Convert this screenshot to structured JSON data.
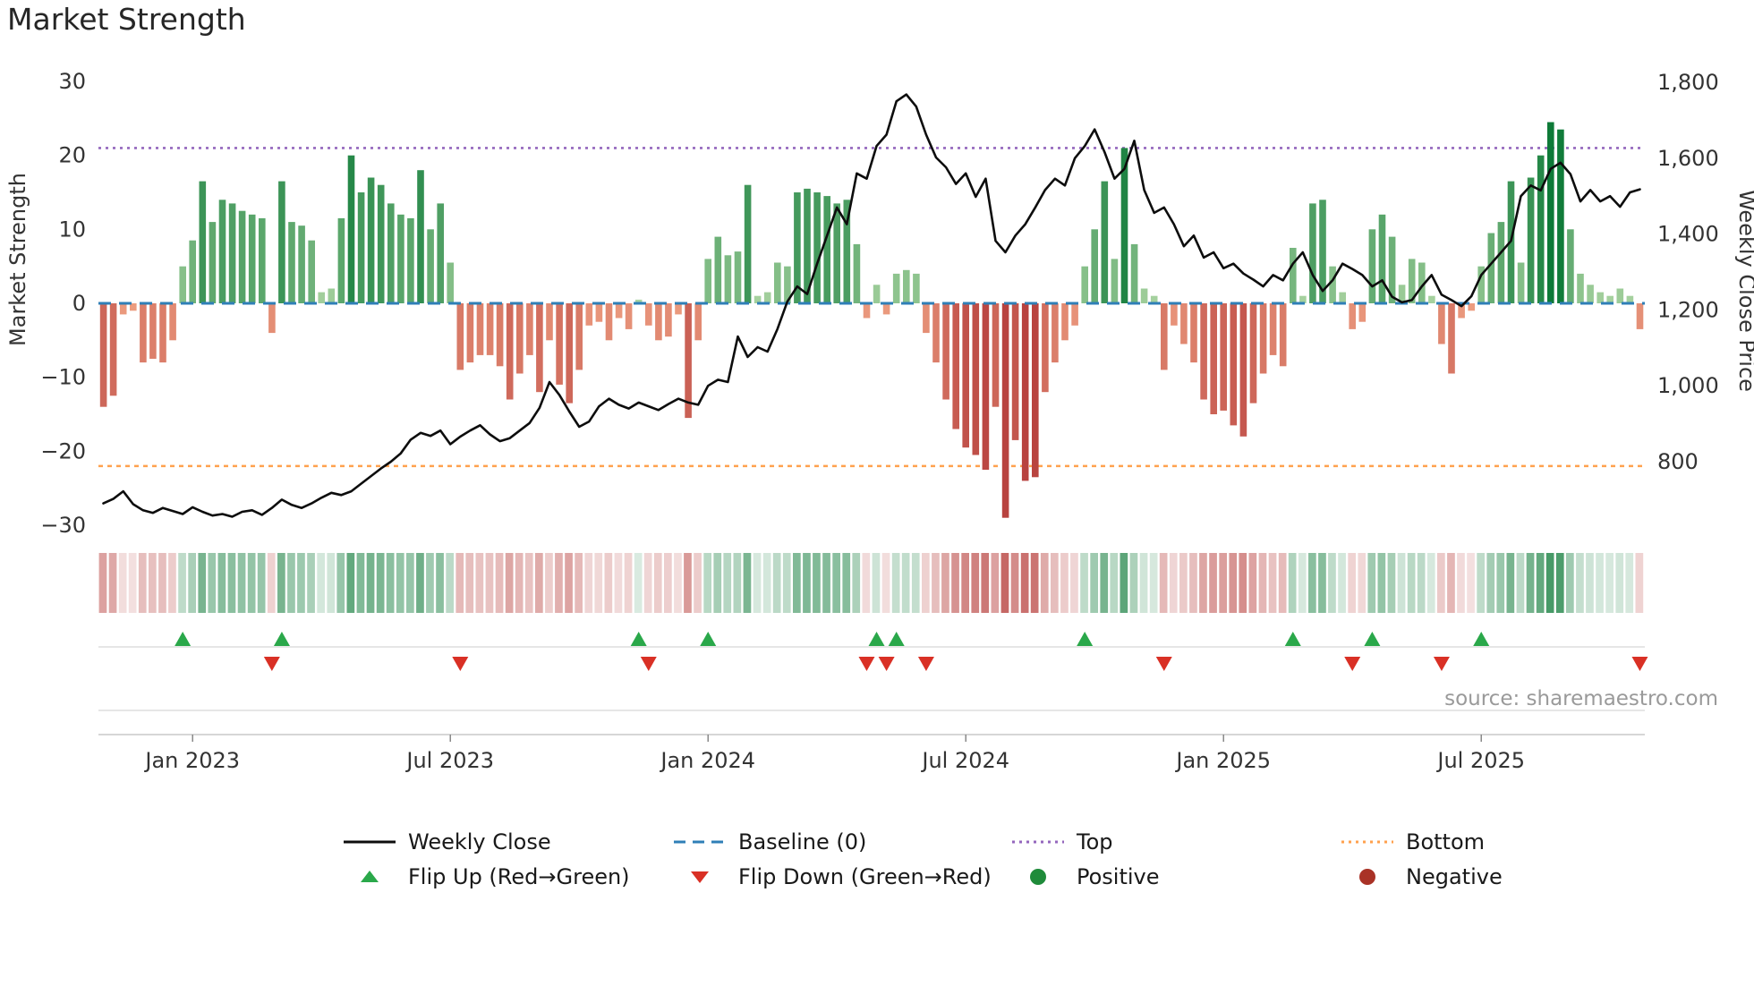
{
  "page": {
    "title": "Market Strength",
    "source": "source: sharemaestro.com"
  },
  "chart_data": {
    "type": "bar+line",
    "description": "Weekly market strength bars with weekly close price line, intensity heatmap strip and flip markers",
    "title": "Market Strength",
    "left_axis": {
      "label": "Market Strength",
      "tick_values": [
        30,
        20,
        10,
        0,
        -10,
        -20,
        -30
      ],
      "tick_labels": [
        "30",
        "20",
        "10",
        "0",
        "−10",
        "−20",
        "−30"
      ],
      "range": [
        -30,
        30
      ]
    },
    "right_axis": {
      "label": "Weekly Close Price",
      "tick_values": [
        1800,
        1600,
        1400,
        1200,
        1000,
        800
      ],
      "tick_labels": [
        "1,800",
        "1,600",
        "1,400",
        "1,200",
        "1,000",
        "800"
      ]
    },
    "x_ticks": [
      {
        "i": 9,
        "label": "Jan 2023"
      },
      {
        "i": 35,
        "label": "Jul 2023"
      },
      {
        "i": 61,
        "label": "Jan 2024"
      },
      {
        "i": 87,
        "label": "Jul 2024"
      },
      {
        "i": 113,
        "label": "Jan 2025"
      },
      {
        "i": 139,
        "label": "Jul 2025"
      }
    ],
    "baseline_value": 0,
    "top_value": 21,
    "bottom_value": -22,
    "strength": [
      -14,
      -12.5,
      -1.5,
      -1,
      -8,
      -7.5,
      -8,
      -5,
      5,
      8.5,
      16.5,
      11,
      14,
      13.5,
      12.5,
      12,
      11.5,
      -4,
      16.5,
      11,
      10.5,
      8.5,
      1.5,
      2,
      11.5,
      20,
      15,
      17,
      16,
      13.5,
      12,
      11.5,
      18,
      10,
      13.5,
      5.5,
      -9,
      -8,
      -7,
      -7,
      -8.5,
      -13,
      -9.5,
      -7,
      -12,
      -5,
      -11,
      -13.5,
      -9,
      -3,
      -2.5,
      -5,
      -2,
      -3.5,
      0.5,
      -3,
      -5,
      -4.5,
      -1.5,
      -15.5,
      -5,
      6,
      9,
      6.5,
      7,
      16,
      1,
      1.5,
      5.5,
      5,
      15,
      15.5,
      15,
      14.5,
      13.5,
      14,
      8,
      -2,
      2.5,
      -1.5,
      4,
      4.5,
      4,
      -4,
      -8,
      -13,
      -17,
      -19.5,
      -20.5,
      -22.5,
      -14,
      -29,
      -18.5,
      -24,
      -23.5,
      -12,
      -8,
      -5,
      -3,
      5,
      10,
      16.5,
      6,
      21,
      8,
      2,
      1,
      -9,
      -3,
      -5.5,
      -8,
      -13,
      -15,
      -14.5,
      -16.5,
      -18,
      -13.5,
      -9.5,
      -7,
      -8.5,
      7.5,
      1,
      13.5,
      14,
      5,
      1.5,
      -3.5,
      -2.5,
      10,
      12,
      9,
      2.5,
      6,
      5.5,
      1,
      -5.5,
      -9.5,
      -2,
      -1,
      5,
      9.5,
      11,
      16.5,
      5.5,
      17,
      20,
      24.5,
      23.5,
      10,
      4,
      2.5,
      1.5,
      1,
      2,
      1,
      -3.5
    ],
    "price": [
      690,
      702,
      722,
      688,
      672,
      665,
      678,
      670,
      662,
      680,
      668,
      658,
      662,
      655,
      668,
      672,
      660,
      678,
      700,
      686,
      678,
      690,
      705,
      718,
      712,
      722,
      742,
      762,
      782,
      800,
      822,
      858,
      876,
      868,
      882,
      846,
      866,
      882,
      896,
      872,
      854,
      862,
      882,
      902,
      942,
      1010,
      976,
      932,
      892,
      906,
      946,
      966,
      950,
      940,
      956,
      946,
      936,
      952,
      966,
      956,
      950,
      1000,
      1016,
      1010,
      1130,
      1076,
      1102,
      1090,
      1150,
      1222,
      1262,
      1242,
      1322,
      1396,
      1470,
      1426,
      1560,
      1546,
      1632,
      1662,
      1750,
      1768,
      1736,
      1662,
      1602,
      1576,
      1532,
      1560,
      1498,
      1546,
      1382,
      1352,
      1396,
      1426,
      1470,
      1516,
      1546,
      1528,
      1600,
      1632,
      1676,
      1616,
      1546,
      1572,
      1646,
      1516,
      1456,
      1470,
      1426,
      1368,
      1396,
      1338,
      1352,
      1310,
      1322,
      1296,
      1280,
      1262,
      1292,
      1278,
      1322,
      1352,
      1292,
      1250,
      1278,
      1322,
      1308,
      1292,
      1262,
      1278,
      1235,
      1220,
      1226,
      1262,
      1292,
      1240,
      1226,
      1210,
      1236,
      1292,
      1322,
      1352,
      1382,
      1500,
      1528,
      1515,
      1572,
      1588,
      1558,
      1486,
      1516,
      1486,
      1500,
      1472,
      1510,
      1518
    ],
    "flip_up_weeks": [
      8,
      18,
      54,
      61,
      78,
      80,
      99,
      120,
      128,
      139
    ],
    "flip_down_weeks": [
      17,
      36,
      55,
      77,
      79,
      83,
      107,
      126,
      135,
      155
    ],
    "colors": {
      "price_line": "#0d0d0d",
      "baseline": "#2f7fb7",
      "top": "#9467bd",
      "bottom": "#ffa14e",
      "flip_up": "#2aa84a",
      "flip_down": "#d93025",
      "positive_marker": "#1f8b3a",
      "negative_marker": "#a93226",
      "bar_pos_dark": "#0e7a38",
      "bar_pos_light": "#aed6a4",
      "bar_neg_dark": "#b8423f",
      "bar_neg_light": "#efa183",
      "axis_text": "#333333",
      "rule": "#d8d8d8",
      "axis_rule": "#c9c9c9"
    },
    "legend": {
      "row1": [
        {
          "key": "weekly-close",
          "label": "Weekly Close",
          "symbol": "line",
          "color": "#0d0d0d"
        },
        {
          "key": "baseline",
          "label": "Baseline (0)",
          "symbol": "dashed-line",
          "color": "#2f7fb7"
        },
        {
          "key": "top",
          "label": "Top",
          "symbol": "dotted-line",
          "color": "#9467bd"
        },
        {
          "key": "bottom",
          "label": "Bottom",
          "symbol": "dotted-line",
          "color": "#ffa14e"
        }
      ],
      "row2": [
        {
          "key": "flip-up",
          "label": "Flip Up (Red→Green)",
          "symbol": "triangle-up",
          "color": "#2aa84a"
        },
        {
          "key": "flip-down",
          "label": "Flip Down (Green→Red)",
          "symbol": "triangle-down",
          "color": "#d93025"
        },
        {
          "key": "positive",
          "label": "Positive",
          "symbol": "circle",
          "color": "#1f8b3a"
        },
        {
          "key": "negative",
          "label": "Negative",
          "symbol": "circle",
          "color": "#a93226"
        }
      ]
    }
  }
}
